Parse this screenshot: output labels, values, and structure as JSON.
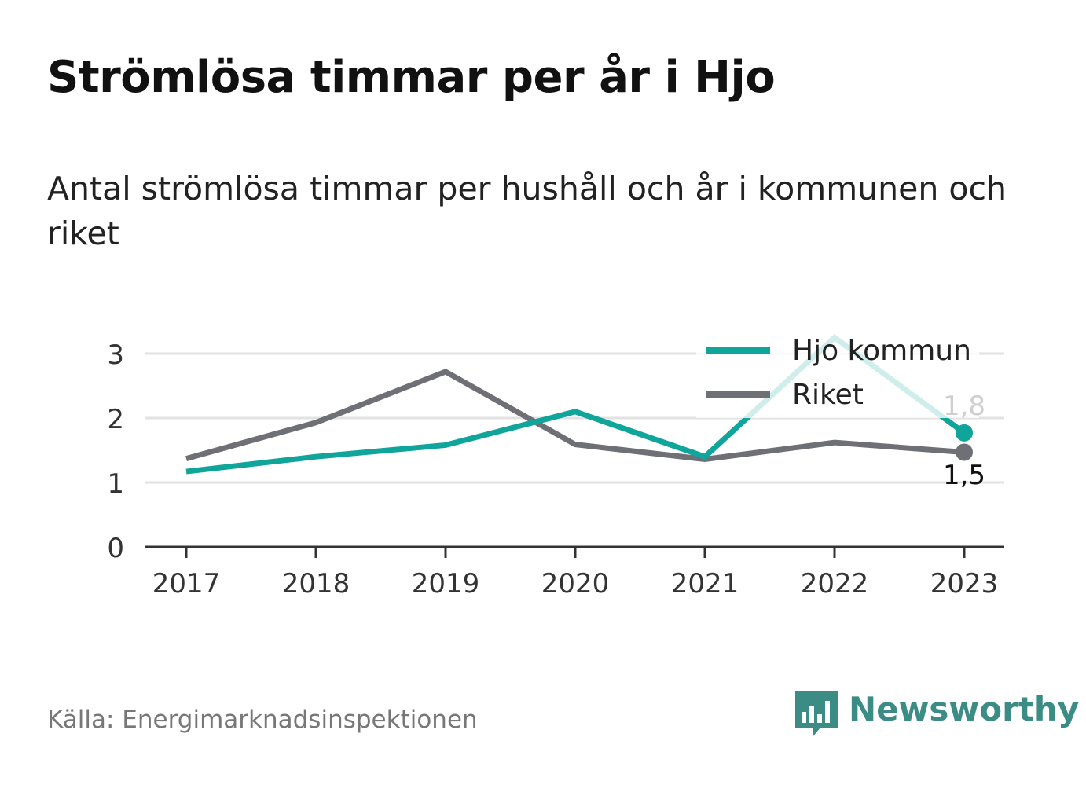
{
  "header": {
    "title": "Strömlösa timmar per år i Hjo",
    "subtitle": "Antal strömlösa timmar per hushåll och år i kommunen och riket"
  },
  "footer": {
    "source": "Källa: Energimarknadsinspektionen",
    "brand": "Newsworthy"
  },
  "colors": {
    "hjo": "#10a59a",
    "riket": "#6f6f76",
    "grid": "#e2e2e2",
    "axis": "#333333",
    "brand": "#3c8c86"
  },
  "chart_data": {
    "type": "line",
    "categories": [
      "2017",
      "2018",
      "2019",
      "2020",
      "2021",
      "2022",
      "2023"
    ],
    "y_ticks": [
      0,
      1,
      2,
      3
    ],
    "ylim": [
      0,
      3.3
    ],
    "grid": true,
    "legend_position": "top-right",
    "series": [
      {
        "name": "Hjo kommun",
        "values": [
          1.17,
          1.4,
          1.58,
          2.1,
          1.4,
          3.25,
          1.77
        ],
        "end_label": "1,8"
      },
      {
        "name": "Riket",
        "values": [
          1.37,
          1.93,
          2.72,
          1.59,
          1.36,
          1.62,
          1.47
        ],
        "end_label": "1,5"
      }
    ]
  }
}
